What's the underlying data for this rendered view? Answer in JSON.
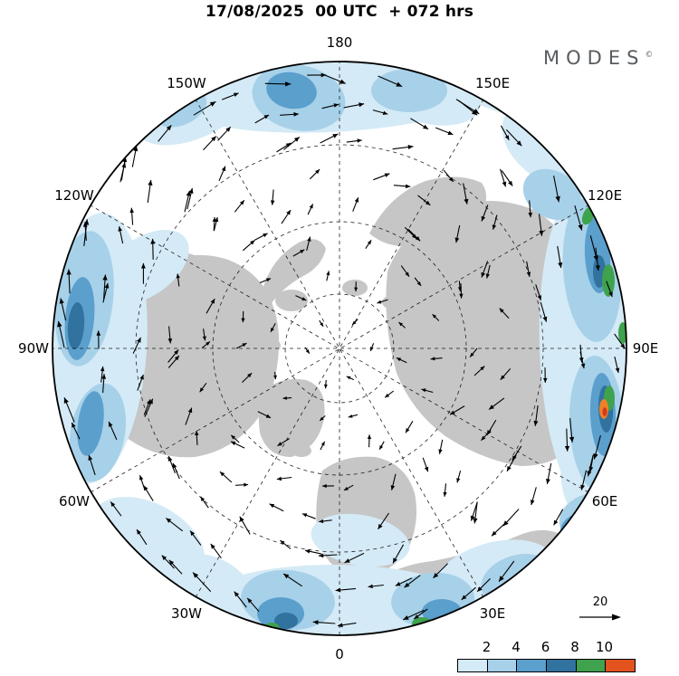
{
  "header": {
    "title": "17/08/2025  00 UTC  + 072 hrs",
    "brand": "MODES",
    "brand_mark": "©"
  },
  "map": {
    "projection": "north-polar-stereographic",
    "land_color": "#c6c6c6",
    "lon_labels": [
      {
        "text": "180"
      },
      {
        "text": "150W"
      },
      {
        "text": "150E"
      },
      {
        "text": "120W"
      },
      {
        "text": "120E"
      },
      {
        "text": "90W"
      },
      {
        "text": "90E"
      },
      {
        "text": "60W"
      },
      {
        "text": "60E"
      },
      {
        "text": "30W"
      },
      {
        "text": "30E"
      },
      {
        "text": "0"
      }
    ]
  },
  "legend": {
    "colorbar": {
      "tick_labels": [
        "2",
        "4",
        "6",
        "8",
        "10"
      ],
      "colors": [
        "#d4eaf6",
        "#a7d1e9",
        "#5b9fcd",
        "#31729f",
        "#3fa24d",
        "#e2531d"
      ]
    },
    "ref_arrow_label": "20"
  }
}
